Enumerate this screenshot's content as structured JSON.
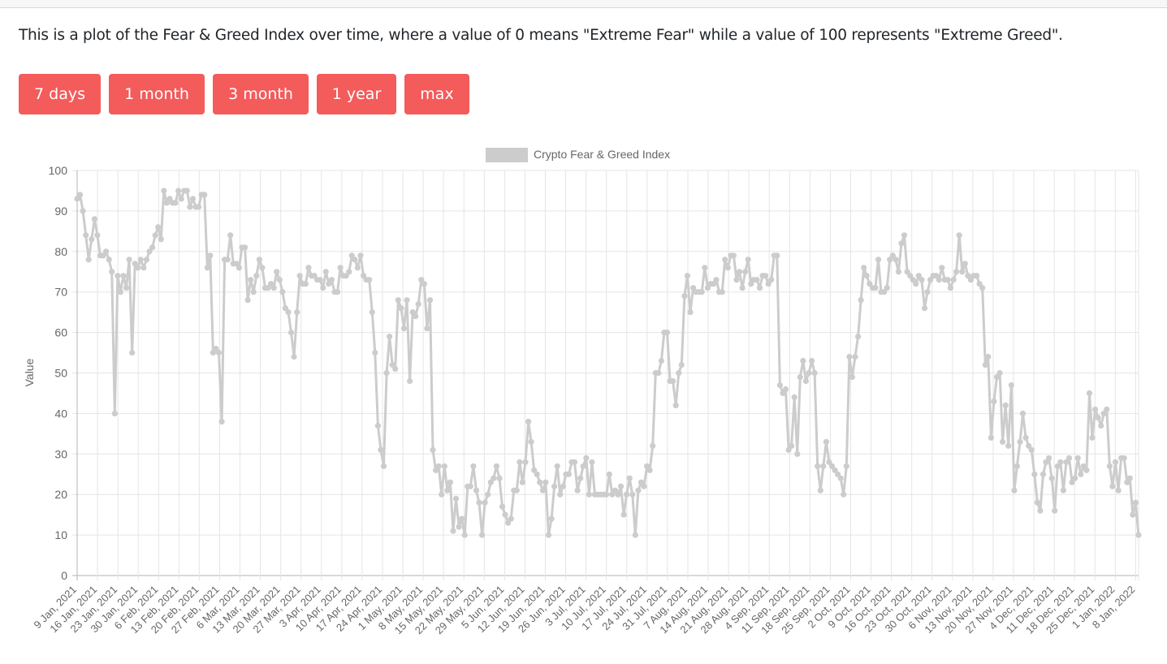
{
  "header": {
    "intro": "This is a plot of the Fear & Greed Index over time, where a value of 0 means \"Extreme Fear\" while a value of 100 represents \"Extreme Greed\"."
  },
  "range_buttons": [
    "7 days",
    "1 month",
    "3 month",
    "1 year",
    "max"
  ],
  "colors": {
    "button": "#f45b5b",
    "series": "#cccccc",
    "grid": "#e5e5e5",
    "text": "#666666"
  },
  "chart_data": {
    "type": "line",
    "ylabel": "Value",
    "ylim": [
      0,
      100
    ],
    "yticks": [
      0,
      10,
      20,
      30,
      40,
      50,
      60,
      70,
      80,
      90,
      100
    ],
    "grid": true,
    "legend": "top",
    "x_start": "9 Jan, 2021",
    "x_end": "9 Jan, 2022",
    "x_tick_labels": [
      "9 Jan, 2021",
      "16 Jan, 2021",
      "23 Jan, 2021",
      "30 Jan, 2021",
      "6 Feb, 2021",
      "13 Feb, 2021",
      "20 Feb, 2021",
      "27 Feb, 2021",
      "6 Mar, 2021",
      "13 Mar, 2021",
      "20 Mar, 2021",
      "27 Mar, 2021",
      "3 Apr, 2021",
      "10 Apr, 2021",
      "17 Apr, 2021",
      "24 Apr, 2021",
      "1 May, 2021",
      "8 May, 2021",
      "15 May, 2021",
      "22 May, 2021",
      "29 May, 2021",
      "5 Jun, 2021",
      "12 Jun, 2021",
      "19 Jun, 2021",
      "26 Jun, 2021",
      "3 Jul, 2021",
      "10 Jul, 2021",
      "17 Jul, 2021",
      "24 Jul, 2021",
      "31 Jul, 2021",
      "7 Aug, 2021",
      "14 Aug, 2021",
      "21 Aug, 2021",
      "28 Aug, 2021",
      "4 Sep, 2021",
      "11 Sep, 2021",
      "18 Sep, 2021",
      "25 Sep, 2021",
      "2 Oct, 2021",
      "9 Oct, 2021",
      "16 Oct, 2021",
      "23 Oct, 2021",
      "30 Oct, 2021",
      "6 Nov, 2021",
      "13 Nov, 2021",
      "20 Nov, 2021",
      "27 Nov, 2021",
      "4 Dec, 2021",
      "11 Dec, 2021",
      "18 Dec, 2021",
      "25 Dec, 2021",
      "1 Jan, 2022",
      "8 Jan, 2022"
    ],
    "series": [
      {
        "name": "Crypto Fear & Greed Index",
        "values": [
          93,
          94,
          90,
          84,
          78,
          83,
          88,
          84,
          79,
          79,
          80,
          78,
          75,
          40,
          74,
          70,
          74,
          71,
          78,
          55,
          77,
          76,
          78,
          76,
          78,
          80,
          81,
          84,
          86,
          83,
          95,
          92,
          93,
          92,
          92,
          95,
          93,
          95,
          95,
          91,
          93,
          91,
          91,
          94,
          94,
          76,
          79,
          55,
          56,
          55,
          38,
          78,
          78,
          84,
          77,
          77,
          76,
          81,
          81,
          68,
          73,
          70,
          74,
          78,
          76,
          71,
          71,
          72,
          71,
          75,
          73,
          70,
          66,
          65,
          60,
          54,
          65,
          74,
          72,
          72,
          76,
          74,
          74,
          73,
          73,
          71,
          75,
          72,
          73,
          70,
          70,
          76,
          74,
          74,
          75,
          79,
          78,
          76,
          79,
          74,
          73,
          73,
          65,
          55,
          37,
          31,
          27,
          50,
          59,
          52,
          51,
          68,
          66,
          61,
          68,
          48,
          65,
          64,
          67,
          73,
          72,
          61,
          68,
          31,
          26,
          27,
          20,
          27,
          21,
          23,
          11,
          19,
          12,
          14,
          10,
          22,
          22,
          27,
          21,
          18,
          10,
          18,
          20,
          23,
          24,
          27,
          24,
          17,
          15,
          13,
          14,
          21,
          21,
          28,
          23,
          28,
          38,
          33,
          26,
          25,
          23,
          21,
          23,
          10,
          14,
          22,
          27,
          20,
          22,
          25,
          25,
          28,
          28,
          21,
          24,
          27,
          29,
          20,
          28,
          20,
          20,
          20,
          20,
          20,
          25,
          20,
          21,
          20,
          22,
          15,
          20,
          24,
          20,
          10,
          21,
          23,
          22,
          27,
          26,
          32,
          50,
          50,
          53,
          60,
          60,
          48,
          48,
          42,
          50,
          52,
          69,
          74,
          65,
          71,
          70,
          70,
          70,
          76,
          71,
          72,
          72,
          73,
          70,
          70,
          78,
          76,
          79,
          79,
          73,
          75,
          71,
          75,
          78,
          72,
          73,
          73,
          71,
          74,
          74,
          72,
          73,
          79,
          79,
          47,
          45,
          46,
          31,
          32,
          44,
          30,
          49,
          53,
          48,
          50,
          53,
          50,
          27,
          21,
          27,
          33,
          28,
          27,
          26,
          25,
          24,
          20,
          27,
          54,
          49,
          54,
          59,
          68,
          76,
          74,
          72,
          71,
          71,
          78,
          70,
          70,
          71,
          78,
          79,
          78,
          75,
          82,
          84,
          75,
          74,
          73,
          72,
          74,
          73,
          66,
          70,
          73,
          74,
          74,
          73,
          76,
          73,
          73,
          71,
          73,
          75,
          84,
          75,
          77,
          74,
          73,
          74,
          74,
          72,
          71,
          52,
          54,
          34,
          43,
          49,
          50,
          33,
          42,
          32,
          47,
          21,
          27,
          33,
          40,
          34,
          32,
          31,
          25,
          18,
          16,
          25,
          28,
          29,
          24,
          16,
          27,
          28,
          21,
          28,
          29,
          23,
          24,
          29,
          25,
          27,
          26,
          45,
          34,
          41,
          39,
          37,
          40,
          41,
          27,
          22,
          28,
          21,
          29,
          29,
          23,
          24,
          15,
          18,
          10
        ]
      }
    ]
  }
}
